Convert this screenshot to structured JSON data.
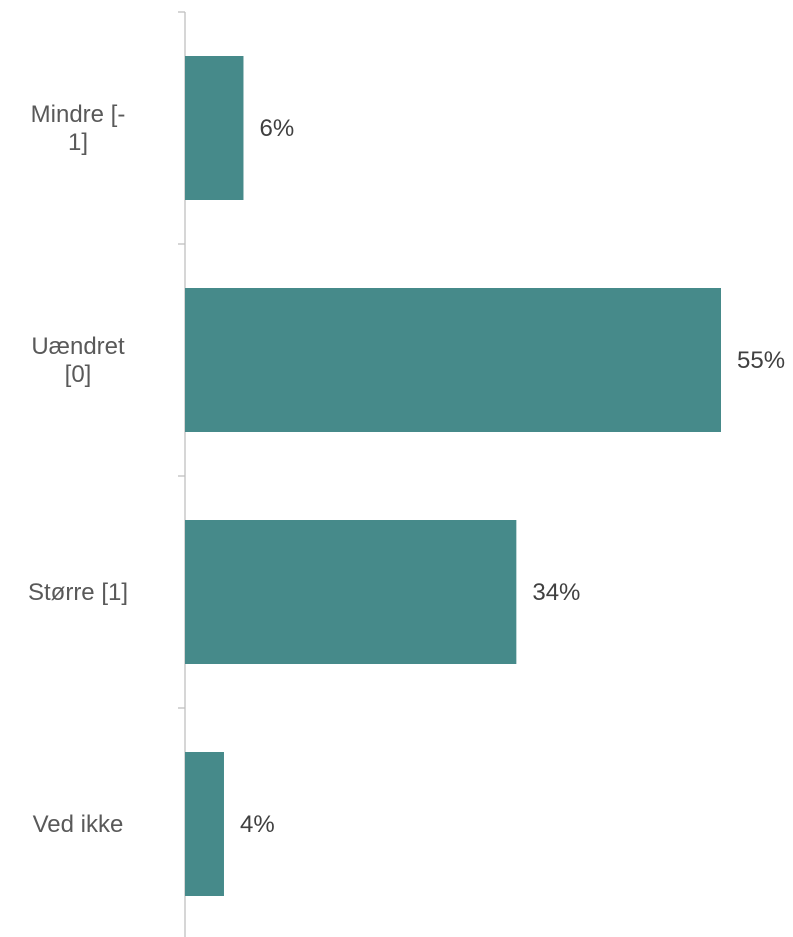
{
  "chart_data": {
    "type": "bar",
    "orientation": "horizontal",
    "categories": [
      "Mindre [-1]",
      "Uændret [0]",
      "Større [1]",
      "Ved ikke"
    ],
    "category_label_lines": [
      [
        "Mindre [-",
        "1]"
      ],
      [
        "Uændret",
        "[0]"
      ],
      [
        "Større [1]"
      ],
      [
        "Ved ikke"
      ]
    ],
    "values": [
      6,
      55,
      34,
      4
    ],
    "data_labels": [
      "6%",
      "55%",
      "34%",
      "4%"
    ],
    "xlim": [
      0,
      55
    ],
    "title": "",
    "xlabel": "",
    "ylabel": "",
    "grid": false,
    "colors": {
      "bar": "#468a8a",
      "axis": "#bfbfbf",
      "category_text": "#595959",
      "value_text": "#404040"
    }
  }
}
